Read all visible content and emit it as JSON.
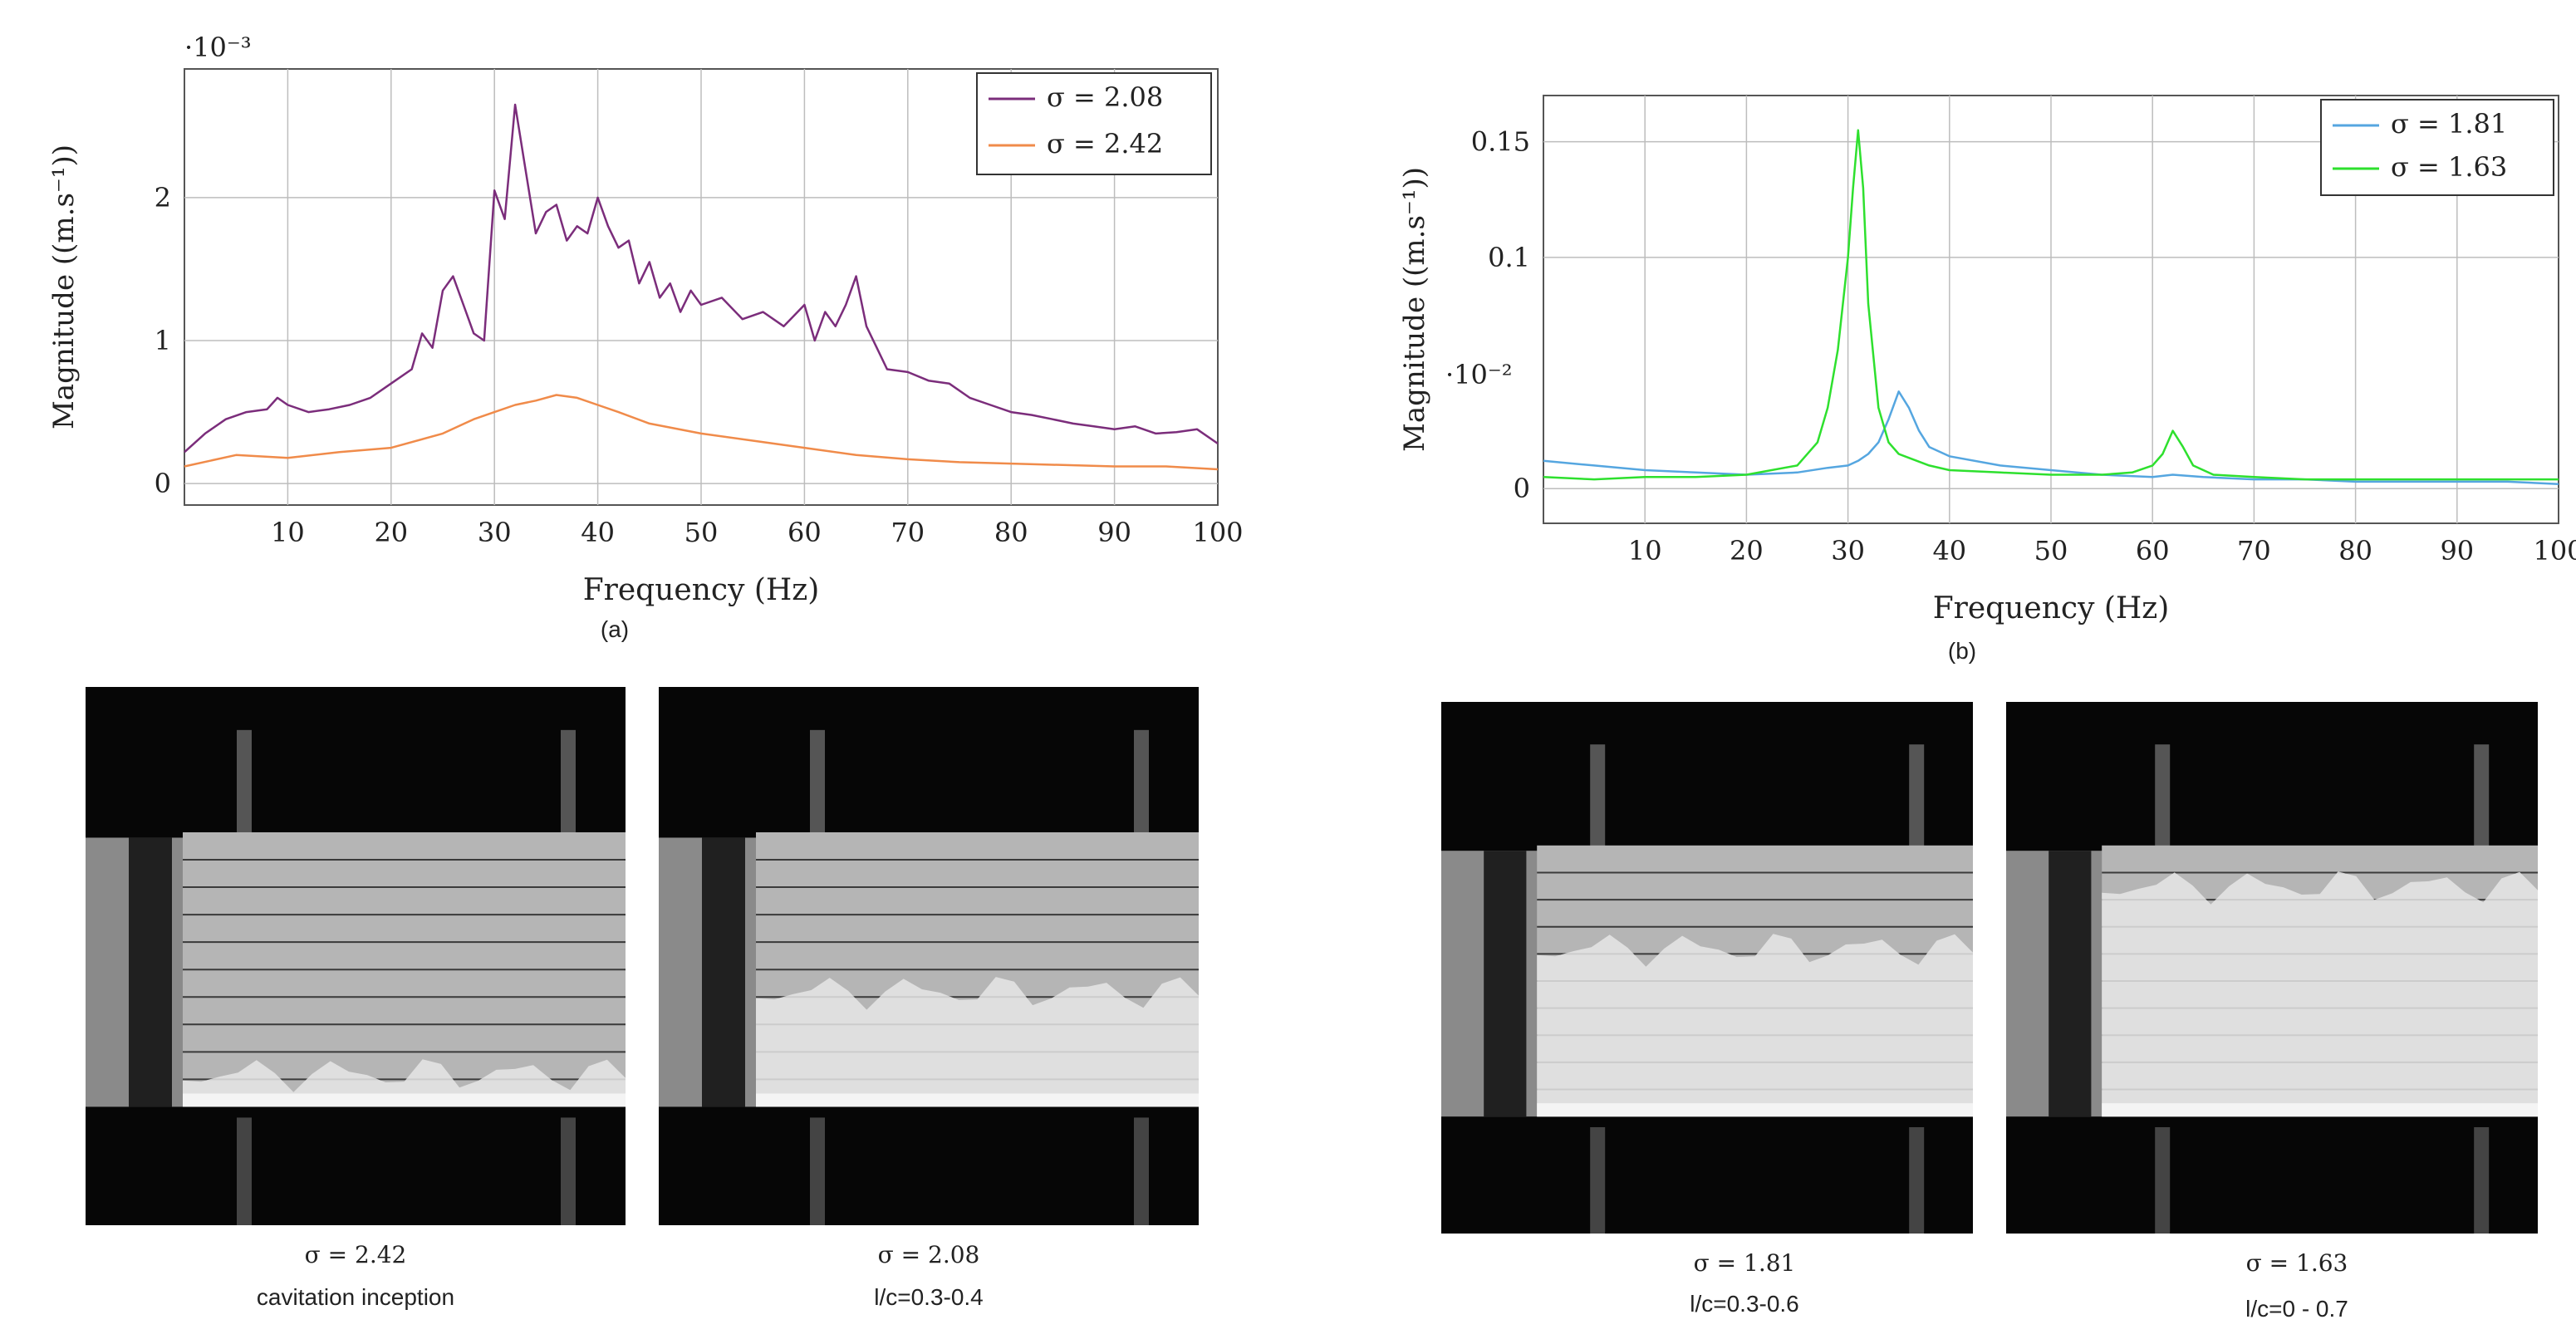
{
  "colors": {
    "sigma_208": "#7b2d7b",
    "sigma_242": "#f08b4a",
    "sigma_181": "#55a6e0",
    "sigma_163": "#2ee02e",
    "grid": "#bdbdbd",
    "axis": "#555555"
  },
  "chart_data": [
    {
      "type": "line",
      "title": "",
      "xlabel": "Frequency (Hz)",
      "ylabel": "Magnitude ((m.s⁻¹))",
      "y_scale_label": "·10⁻³",
      "xlim": [
        0,
        100
      ],
      "ylim": [
        -0.15,
        2.9
      ],
      "xticks": [
        "10",
        "20",
        "30",
        "40",
        "50",
        "60",
        "70",
        "80",
        "90",
        "100"
      ],
      "yticks": [
        "0",
        "1",
        "2"
      ],
      "grid": true,
      "legend_position": "top-right",
      "caption": "(a)",
      "series": [
        {
          "name": "σ = 2.08",
          "color_key": "sigma_208",
          "x": [
            0,
            2,
            4,
            6,
            8,
            9,
            10,
            12,
            14,
            16,
            18,
            20,
            22,
            23,
            24,
            25,
            26,
            27,
            28,
            29,
            30,
            31,
            32,
            33,
            34,
            35,
            36,
            37,
            38,
            39,
            40,
            41,
            42,
            43,
            44,
            45,
            46,
            47,
            48,
            49,
            50,
            52,
            54,
            56,
            58,
            60,
            61,
            62,
            63,
            64,
            65,
            66,
            67,
            68,
            70,
            72,
            74,
            76,
            78,
            80,
            82,
            84,
            86,
            88,
            90,
            92,
            94,
            96,
            98,
            100
          ],
          "y": [
            0.22,
            0.35,
            0.45,
            0.5,
            0.52,
            0.6,
            0.55,
            0.5,
            0.52,
            0.55,
            0.6,
            0.7,
            0.8,
            1.05,
            0.95,
            1.35,
            1.45,
            1.25,
            1.05,
            1.0,
            2.05,
            1.85,
            2.65,
            2.2,
            1.75,
            1.9,
            1.95,
            1.7,
            1.8,
            1.75,
            2.0,
            1.8,
            1.65,
            1.7,
            1.4,
            1.55,
            1.3,
            1.4,
            1.2,
            1.35,
            1.25,
            1.3,
            1.15,
            1.2,
            1.1,
            1.25,
            1.0,
            1.2,
            1.1,
            1.25,
            1.45,
            1.1,
            0.95,
            0.8,
            0.78,
            0.72,
            0.7,
            0.6,
            0.55,
            0.5,
            0.48,
            0.45,
            0.42,
            0.4,
            0.38,
            0.4,
            0.35,
            0.36,
            0.38,
            0.28
          ]
        },
        {
          "name": "σ = 2.42",
          "color_key": "sigma_242",
          "x": [
            0,
            5,
            10,
            15,
            20,
            25,
            28,
            30,
            32,
            34,
            36,
            38,
            40,
            42,
            45,
            50,
            55,
            60,
            65,
            70,
            75,
            80,
            85,
            90,
            95,
            100
          ],
          "y": [
            0.12,
            0.2,
            0.18,
            0.22,
            0.25,
            0.35,
            0.45,
            0.5,
            0.55,
            0.58,
            0.62,
            0.6,
            0.55,
            0.5,
            0.42,
            0.35,
            0.3,
            0.25,
            0.2,
            0.17,
            0.15,
            0.14,
            0.13,
            0.12,
            0.12,
            0.1
          ]
        }
      ]
    },
    {
      "type": "line",
      "title": "",
      "xlabel": "Frequency (Hz)",
      "ylabel": "Magnitude ((m.s⁻¹))",
      "y_scale_label": "·10⁻²",
      "xlim": [
        0,
        100
      ],
      "ylim": [
        -0.015,
        0.17
      ],
      "xticks": [
        "10",
        "20",
        "30",
        "40",
        "50",
        "60",
        "70",
        "80",
        "90",
        "100"
      ],
      "yticks": [
        "0",
        "0.1",
        "0.15"
      ],
      "ytick_values": [
        0,
        0.1,
        0.15
      ],
      "grid": true,
      "legend_position": "top-right",
      "caption": "(b)",
      "series": [
        {
          "name": "σ = 1.81",
          "color_key": "sigma_181",
          "x": [
            0,
            5,
            10,
            15,
            20,
            25,
            28,
            30,
            31,
            32,
            33,
            34,
            35,
            36,
            37,
            38,
            40,
            45,
            50,
            55,
            60,
            62,
            65,
            70,
            75,
            80,
            85,
            90,
            95,
            100
          ],
          "y": [
            0.012,
            0.01,
            0.008,
            0.007,
            0.006,
            0.007,
            0.009,
            0.01,
            0.012,
            0.015,
            0.02,
            0.03,
            0.042,
            0.035,
            0.025,
            0.018,
            0.014,
            0.01,
            0.008,
            0.006,
            0.005,
            0.006,
            0.005,
            0.004,
            0.004,
            0.003,
            0.003,
            0.003,
            0.003,
            0.002
          ]
        },
        {
          "name": "σ = 1.63",
          "color_key": "sigma_163",
          "x": [
            0,
            5,
            10,
            15,
            20,
            25,
            27,
            28,
            29,
            30,
            30.5,
            31,
            31.5,
            32,
            33,
            34,
            35,
            38,
            40,
            45,
            50,
            55,
            58,
            60,
            61,
            62,
            63,
            64,
            66,
            70,
            75,
            80,
            85,
            90,
            95,
            100
          ],
          "y": [
            0.005,
            0.004,
            0.005,
            0.005,
            0.006,
            0.01,
            0.02,
            0.035,
            0.06,
            0.1,
            0.13,
            0.155,
            0.13,
            0.08,
            0.035,
            0.02,
            0.015,
            0.01,
            0.008,
            0.007,
            0.006,
            0.006,
            0.007,
            0.01,
            0.015,
            0.025,
            0.018,
            0.01,
            0.006,
            0.005,
            0.004,
            0.004,
            0.004,
            0.004,
            0.004,
            0.004
          ]
        }
      ]
    }
  ],
  "photos": [
    {
      "sigma": "σ = 2.42",
      "note": "cavitation inception"
    },
    {
      "sigma": "σ = 2.08",
      "note": "l/c=0.3-0.4"
    },
    {
      "sigma": "σ = 1.81",
      "note": "l/c=0.3-0.6"
    },
    {
      "sigma": "σ = 1.63",
      "note": "l/c=0 - 0.7"
    }
  ]
}
